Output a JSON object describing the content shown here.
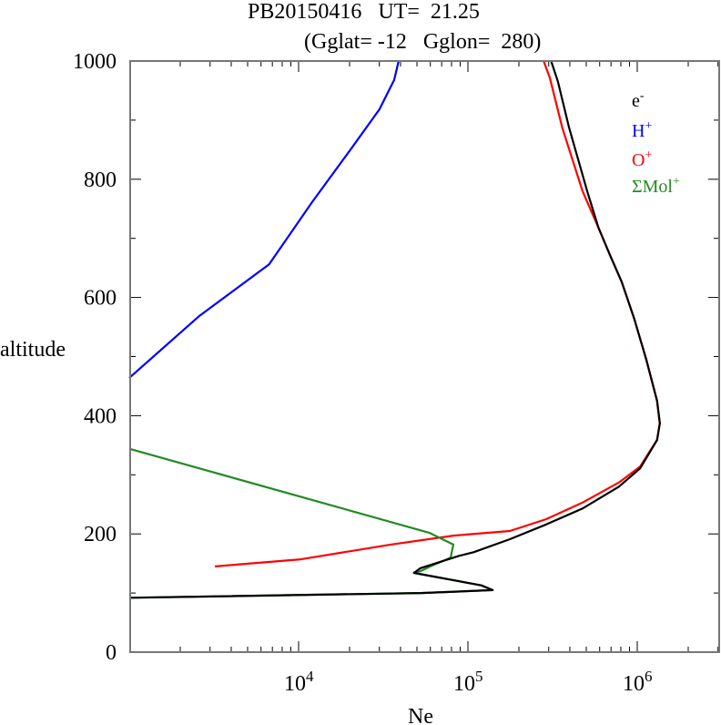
{
  "chart_data": {
    "type": "line",
    "title": "PB20150416   UT=  21.25",
    "subtitle": "(Gglat= -12   Gglon=  280)",
    "xlabel": "Ne",
    "ylabel": "altitude",
    "xscale": "log",
    "xlim": [
      1000,
      3000000
    ],
    "ylim": [
      0,
      1000
    ],
    "grid": false,
    "legend_position": "top-right",
    "x_ticks": [
      {
        "value": 10000,
        "base": "10",
        "exp": "4"
      },
      {
        "value": 100000,
        "base": "10",
        "exp": "5"
      },
      {
        "value": 1000000,
        "base": "10",
        "exp": "6"
      }
    ],
    "y_ticks": [
      {
        "value": 0,
        "label": "0"
      },
      {
        "value": 200,
        "label": "200"
      },
      {
        "value": 400,
        "label": "400"
      },
      {
        "value": 600,
        "label": "600"
      },
      {
        "value": 800,
        "label": "800"
      },
      {
        "value": 1000,
        "label": "1000"
      }
    ],
    "series": [
      {
        "name": "e-",
        "label_base": "e",
        "label_sup": "-",
        "color": "#000000",
        "x": [
          1000,
          53000,
          140000,
          120000,
          48000,
          52500,
          89000,
          108000,
          177000,
          290000,
          475000,
          780000,
          1040000,
          1310000,
          1360000,
          1310000,
          1130000,
          960000,
          810000,
          690000,
          590000,
          506000,
          395000,
          340000,
          310000
        ],
        "y": [
          92,
          100,
          105,
          113,
          134,
          142,
          163,
          169,
          191,
          216,
          243,
          280,
          311,
          359,
          387,
          425,
          495,
          564,
          626,
          672,
          718,
          780,
          888,
          965,
          1000
        ]
      },
      {
        "name": "H+",
        "label_base": "H",
        "label_sup": "+",
        "color": "#0000ff",
        "x": [
          1000,
          2600,
          6700,
          12000,
          20700,
          30000,
          36700,
          39000
        ],
        "y": [
          464,
          569,
          656,
          761,
          854,
          918,
          968,
          1000
        ]
      },
      {
        "name": "O+",
        "label_base": "O",
        "label_sup": "+",
        "color": "#ff0000",
        "x": [
          3200,
          10300,
          35000,
          82000,
          177000,
          290000,
          475000,
          780000,
          1040000,
          1310000,
          1360000,
          1310000,
          1130000,
          960000,
          810000,
          690000,
          590000,
          475000,
          360000,
          305000,
          280000
        ],
        "y": [
          145,
          157,
          182,
          197,
          205,
          225,
          253,
          287,
          314,
          359,
          387,
          425,
          495,
          564,
          626,
          672,
          718,
          780,
          888,
          971,
          1000
        ]
      },
      {
        "name": "ΣMol+",
        "label_base": "ΣMol",
        "label_sup": "+",
        "color": "#228b22",
        "x": [
          1000,
          59000,
          82000,
          79000,
          60000,
          52500,
          48000,
          120000,
          140000,
          53000,
          1000
        ],
        "y": [
          344,
          202,
          182,
          160,
          145,
          137,
          134,
          113,
          105,
          100,
          92
        ]
      }
    ]
  }
}
